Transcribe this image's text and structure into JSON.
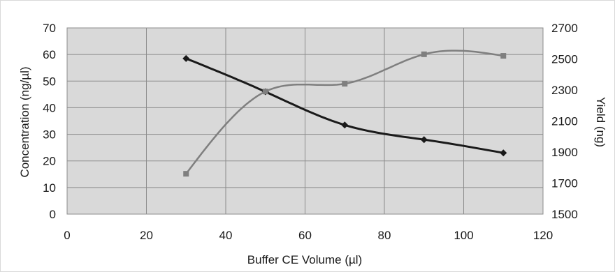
{
  "chart_data": {
    "type": "scatter",
    "xlabel": "Buffer CE Volume (µl)",
    "ylabel": "Concentration (ng/µl)",
    "y2label": "Yield (ng)",
    "xlim": [
      0,
      120
    ],
    "ylim": [
      0,
      70
    ],
    "y2lim": [
      1500,
      2700
    ],
    "xticks": [
      0,
      20,
      40,
      60,
      80,
      100,
      120
    ],
    "yticks": [
      0,
      10,
      20,
      30,
      40,
      50,
      60,
      70
    ],
    "y2ticks": [
      1500,
      1700,
      1900,
      2100,
      2300,
      2500,
      2700
    ],
    "grid": true,
    "plot_background": "#d9d9d9",
    "series": [
      {
        "axis": "left",
        "marker": "diamond",
        "color": "#1a1a1a",
        "x": [
          30,
          50,
          70,
          90,
          110
        ],
        "values": [
          58.5,
          46,
          33.5,
          28,
          23
        ],
        "trend": "smooth decreasing"
      },
      {
        "axis": "right",
        "marker": "square",
        "color": "#7f7f7f",
        "x": [
          30,
          50,
          70,
          90,
          110
        ],
        "values": [
          1760,
          2290,
          2340,
          2530,
          2520
        ],
        "trend": "smooth increasing (polynomial)"
      }
    ]
  }
}
